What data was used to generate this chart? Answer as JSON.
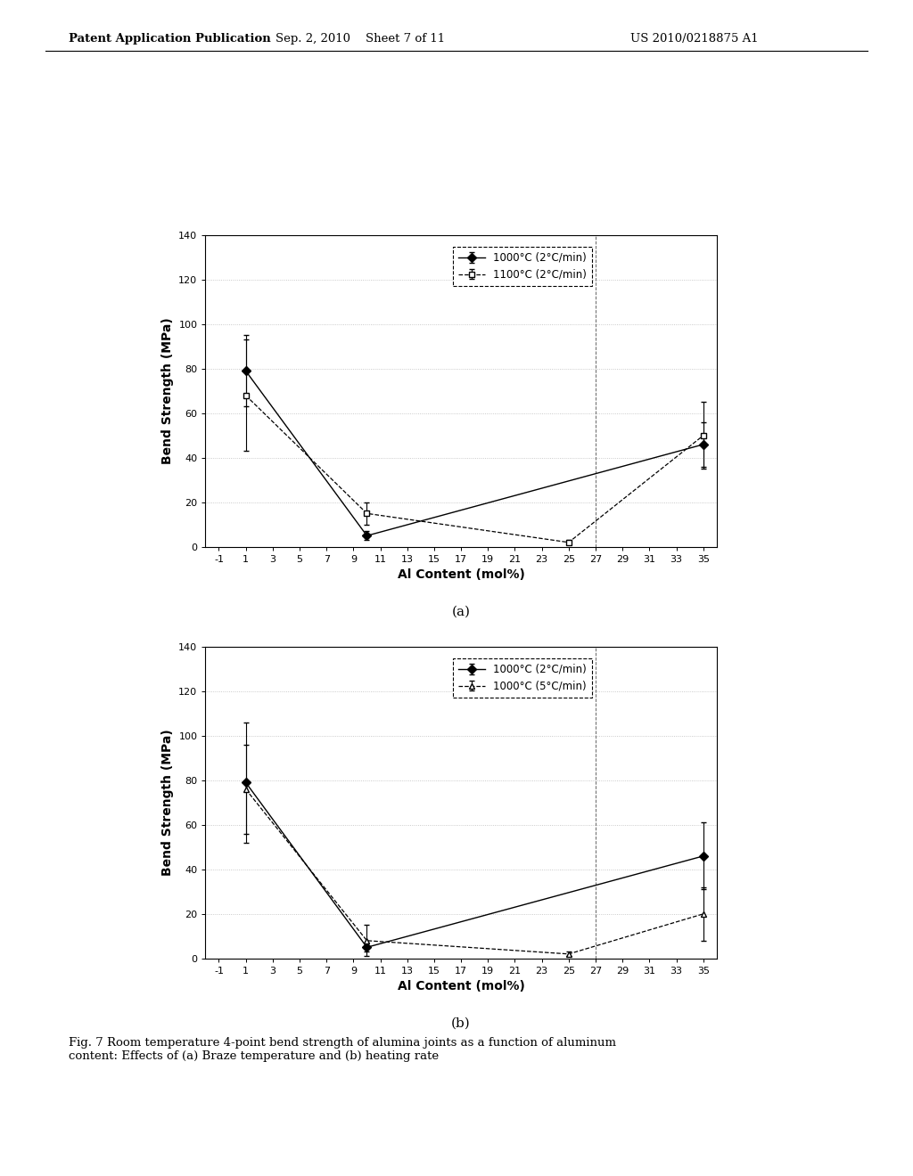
{
  "header_left": "Patent Application Publication",
  "header_center": "Sep. 2, 2010    Sheet 7 of 11",
  "header_right": "US 2010/0218875 A1",
  "caption": "Fig. 7 Room temperature 4-point bend strength of alumina joints as a function of aluminum\ncontent: Effects of (a) Braze temperature and (b) heating rate",
  "xlabel": "Al Content (mol%)",
  "ylabel": "Bend Strength (MPa)",
  "xticks": [
    -1,
    1,
    3,
    5,
    7,
    9,
    11,
    13,
    15,
    17,
    19,
    21,
    23,
    25,
    27,
    29,
    31,
    33,
    35
  ],
  "ylim": [
    0,
    140
  ],
  "yticks": [
    0,
    20,
    40,
    60,
    80,
    100,
    120,
    140
  ],
  "plot_a": {
    "label_a": "(a)",
    "series1": {
      "label": "1000°C (2°C/min)",
      "x": [
        1,
        10,
        35
      ],
      "y": [
        79,
        5,
        46
      ],
      "yerr": [
        16,
        2,
        10
      ],
      "color": "black",
      "linestyle": "-",
      "marker": "D",
      "markersize": 5,
      "fillstyle": "full"
    },
    "series2": {
      "label": "1100°C (2°C/min)",
      "x": [
        1,
        10,
        25,
        35
      ],
      "y": [
        68,
        15,
        2,
        50
      ],
      "yerr": [
        25,
        5,
        1,
        15
      ],
      "color": "black",
      "linestyle": "--",
      "marker": "s",
      "markersize": 5,
      "fillstyle": "none"
    },
    "vline_x": 27
  },
  "plot_b": {
    "label_b": "(b)",
    "series1": {
      "label": "1000°C (2°C/min)",
      "x": [
        1,
        10,
        35
      ],
      "y": [
        79,
        5,
        46
      ],
      "yerr": [
        27,
        2,
        15
      ],
      "color": "black",
      "linestyle": "-",
      "marker": "D",
      "markersize": 5,
      "fillstyle": "full"
    },
    "series2": {
      "label": "1000°C (5°C/min)",
      "x": [
        1,
        10,
        25,
        35
      ],
      "y": [
        76,
        8,
        2,
        20
      ],
      "yerr": [
        20,
        7,
        1,
        12
      ],
      "color": "black",
      "linestyle": "--",
      "marker": "^",
      "markersize": 5,
      "fillstyle": "none"
    },
    "vline_x": 27
  },
  "background_color": "#ffffff",
  "grid_color": "#bbbbbb"
}
